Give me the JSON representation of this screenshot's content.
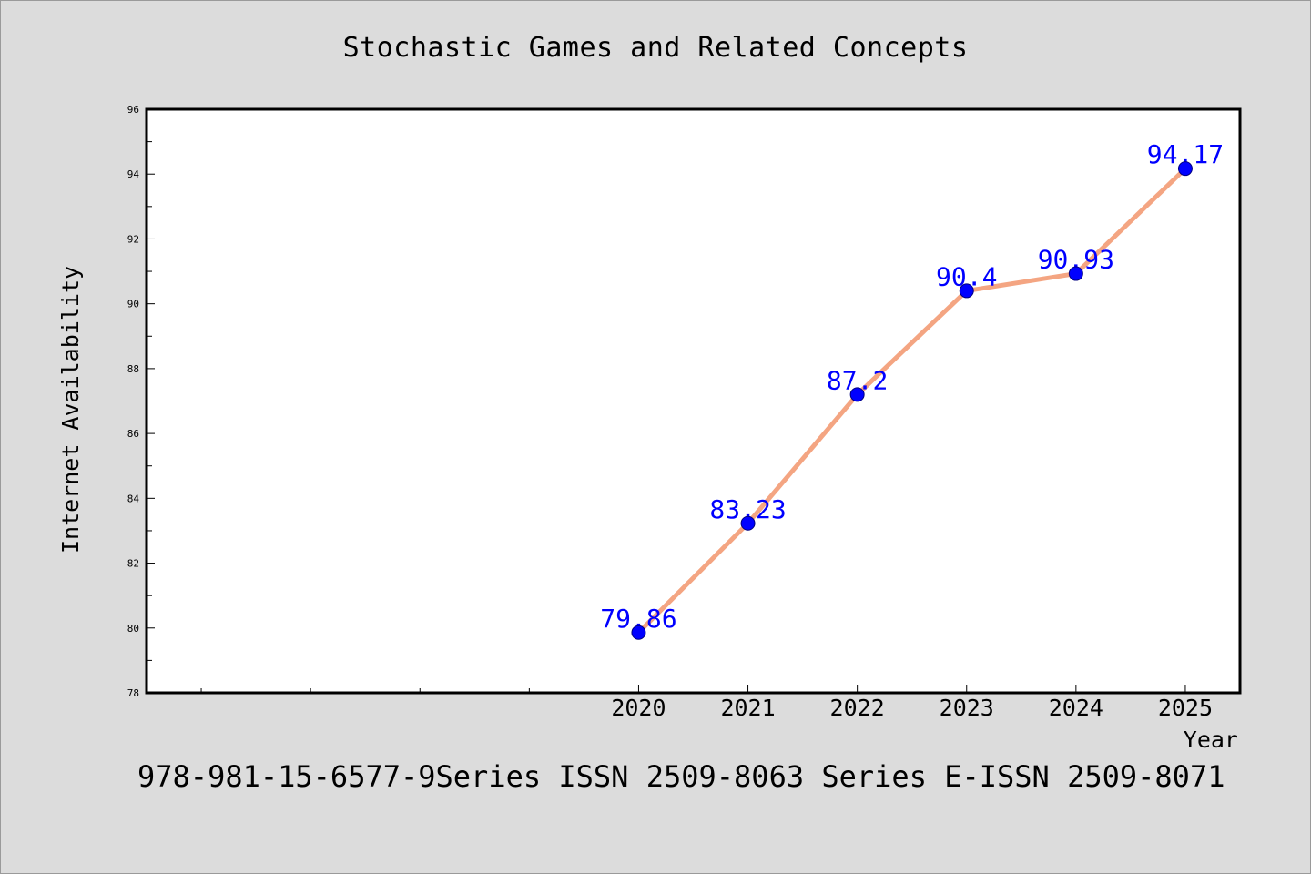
{
  "chart_data": {
    "type": "line",
    "title": "Stochastic Games and Related Concepts",
    "xlabel": "Year",
    "ylabel": "Internet Availability",
    "categories": [
      "2020",
      "2021",
      "2022",
      "2023",
      "2024",
      "2025"
    ],
    "x_slots_total": 10,
    "x_first_category_slot": 4,
    "series": [
      {
        "values": [
          79.86,
          83.23,
          87.2,
          90.4,
          90.93,
          94.17
        ]
      }
    ],
    "data_labels": [
      "79.86",
      "83.23",
      "87.2",
      "90.4",
      "90.93",
      "94.17"
    ],
    "ylim": [
      78,
      96
    ],
    "y_ticks": [
      78,
      80,
      82,
      84,
      86,
      88,
      90,
      92,
      94,
      96
    ],
    "y_minor_step": 1,
    "grid": false,
    "legend": "none",
    "line_color": "#f4a582",
    "marker_color": "#0000ff",
    "label_color": "#0000ff",
    "background_color": "#dcdcdc",
    "plot_background_color": "#ffffff"
  },
  "footer": {
    "text": "978-981-15-6577-9Series ISSN 2509-8063 Series E-ISSN 2509-8071"
  }
}
